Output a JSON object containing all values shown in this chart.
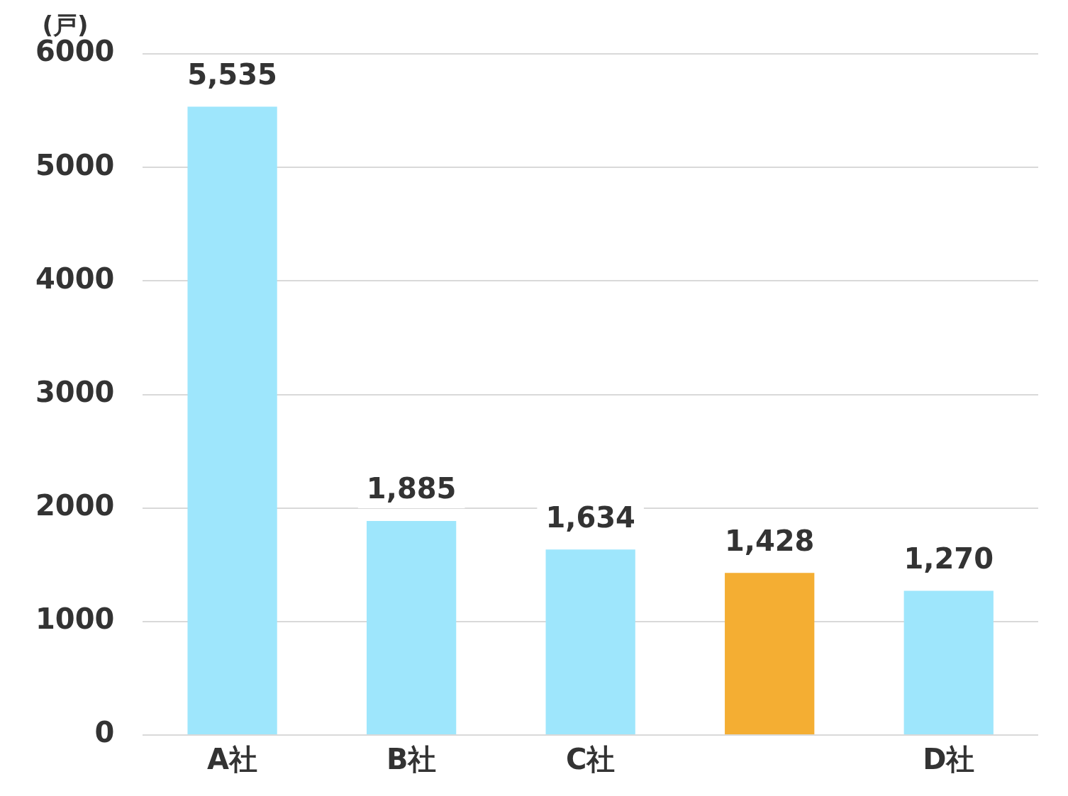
{
  "chart_data": {
    "type": "bar",
    "ylabel": "(戸)",
    "categories": [
      "A社",
      "B社",
      "C社",
      null,
      "D社"
    ],
    "values": [
      5535,
      1885,
      1634,
      1428,
      1270
    ],
    "colors": [
      "#9ee6fc",
      "#9ee6fc",
      "#9ee6fc",
      "#f4ae33",
      "#9ee6fc"
    ],
    "value_labels": [
      "5,535",
      "1,885",
      "1,634",
      "1,428",
      "1,270"
    ],
    "ylim": [
      0,
      6000
    ],
    "yticks": [
      0,
      1000,
      2000,
      3000,
      4000,
      5000,
      6000
    ],
    "grid": "y"
  }
}
